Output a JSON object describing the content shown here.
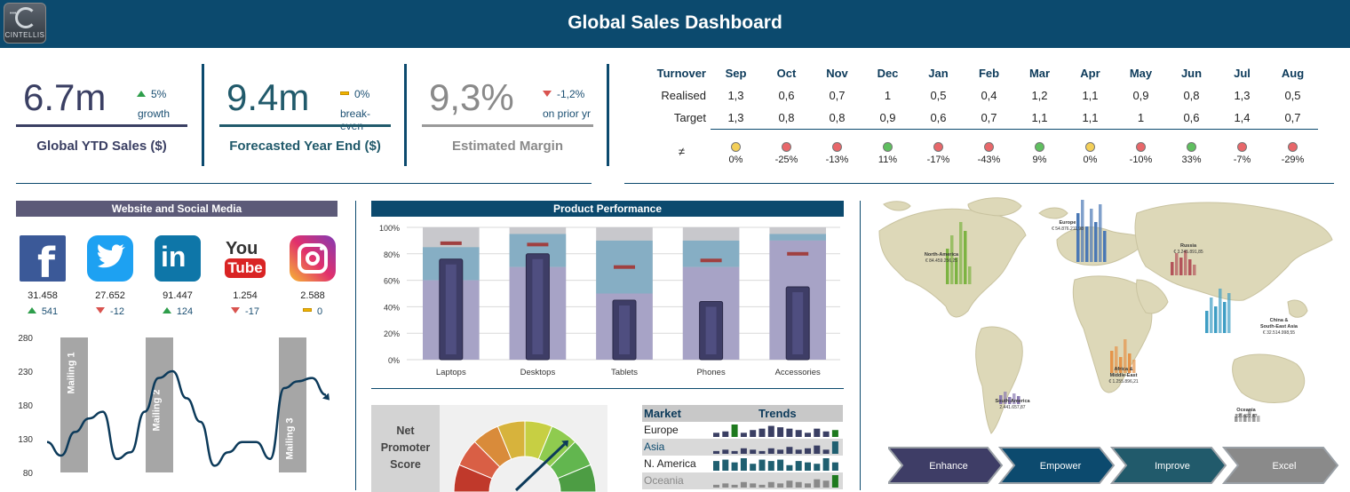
{
  "header": {
    "title": "Global Sales Dashboard",
    "logo_text": "CINTELLIS"
  },
  "kpis": [
    {
      "value": "6.7m",
      "change": "5%",
      "change_dir": "up",
      "change_sub": "growth",
      "label": "Global YTD Sales ($)",
      "color": "#3a3f63"
    },
    {
      "value": "9.4m",
      "change": "0%",
      "change_dir": "flat",
      "change_sub": "break-even",
      "label": "Forecasted Year End ($)",
      "color": "#215a6b"
    },
    {
      "value": "9,3%",
      "change": "-1,2%",
      "change_dir": "down",
      "change_sub": "on prior yr",
      "label": "Estimated Margin",
      "color": "#8a8a8a"
    }
  ],
  "turnover": {
    "header": "Turnover",
    "months": [
      "Sep",
      "Oct",
      "Nov",
      "Dec",
      "Jan",
      "Feb",
      "Mar",
      "Apr",
      "May",
      "Jun",
      "Jul",
      "Aug"
    ],
    "realised_label": "Realised",
    "realised": [
      "1,3",
      "0,6",
      "0,7",
      "1",
      "0,5",
      "0,4",
      "1,2",
      "1,1",
      "0,9",
      "0,8",
      "1,3",
      "0,5"
    ],
    "target_label": "Target",
    "target": [
      "1,3",
      "0,8",
      "0,8",
      "0,9",
      "0,6",
      "0,7",
      "1,1",
      "1,1",
      "1",
      "0,6",
      "1,4",
      "0,7"
    ],
    "diff_label": "≠",
    "status": [
      "y",
      "r",
      "r",
      "g",
      "r",
      "r",
      "g",
      "y",
      "r",
      "g",
      "r",
      "r"
    ],
    "diff": [
      "0%",
      "-25%",
      "-13%",
      "11%",
      "-17%",
      "-43%",
      "9%",
      "0%",
      "-10%",
      "33%",
      "-7%",
      "-29%"
    ]
  },
  "social_panel": {
    "title": "Website and Social Media",
    "networks": [
      {
        "name": "facebook-icon",
        "glyph": "f",
        "value": "31.458",
        "delta": "541",
        "dir": "up"
      },
      {
        "name": "twitter-icon",
        "glyph": "",
        "value": "27.652",
        "delta": "-12",
        "dir": "down"
      },
      {
        "name": "linkedin-icon",
        "glyph": "in",
        "value": "91.447",
        "delta": "124",
        "dir": "up"
      },
      {
        "name": "youtube-icon",
        "glyph": "You",
        "glyph2": "Tube",
        "value": "1.254",
        "delta": "-17",
        "dir": "down"
      },
      {
        "name": "instagram-icon",
        "glyph": "",
        "value": "2.588",
        "delta": "0",
        "dir": "flat"
      }
    ],
    "mailings": [
      "Mailing 1",
      "Mailing 2",
      "Mailing 3"
    ]
  },
  "product_panel": {
    "title": "Product Performance"
  },
  "nps": {
    "label_line1": "Net",
    "label_line2": "Promoter",
    "label_line3": "Score",
    "value": 0.72
  },
  "market": {
    "header_market": "Market",
    "header_trends": "Trends",
    "rows": [
      {
        "name": "Europe",
        "color": "#1e7a1e",
        "spark": [
          3,
          4,
          9,
          3,
          5,
          6,
          8,
          7,
          6,
          5,
          3,
          6,
          4,
          5
        ]
      },
      {
        "name": "Asia",
        "color": "#1f5f70",
        "spark": [
          2,
          3,
          2,
          4,
          3,
          2,
          4,
          3,
          5,
          3,
          4,
          6,
          3,
          9
        ]
      },
      {
        "name": "N. America",
        "color": "#1f5f70",
        "spark": [
          7,
          8,
          6,
          9,
          5,
          8,
          7,
          8,
          4,
          7,
          6,
          5,
          9,
          6
        ]
      },
      {
        "name": "Oceania",
        "color": "#1e7a1e",
        "spark": [
          2,
          3,
          2,
          4,
          3,
          2,
          4,
          3,
          5,
          4,
          3,
          6,
          5,
          9
        ]
      }
    ]
  },
  "map": {
    "regions": [
      {
        "name": "North-America",
        "value": "€ 84.459.256,25"
      },
      {
        "name": "Europe",
        "value": "€ 54.876.211,98"
      },
      {
        "name": "Russia",
        "value": "€ 3.245.891,85"
      },
      {
        "name": "China & South-East Asia",
        "value": "€ 32.514.998,55"
      },
      {
        "name": "Africa & Middle-East",
        "value": "€ 1.255.896,21"
      },
      {
        "name": "South-America",
        "value": "2.441.657,87"
      },
      {
        "name": "Oceania",
        "value": "895.622,47"
      }
    ],
    "steps": [
      "Enhance",
      "Empower",
      "Improve",
      "Excel"
    ]
  },
  "chart_data": [
    {
      "type": "line",
      "title": "",
      "y_ticks": [
        280,
        230,
        180,
        130,
        80
      ],
      "ylim": [
        80,
        280
      ],
      "values": [
        125,
        105,
        140,
        160,
        170,
        100,
        110,
        170,
        220,
        230,
        190,
        155,
        90,
        110,
        125,
        125,
        100,
        205,
        215,
        220,
        195
      ],
      "annotations": [
        "Mailing 1",
        "Mailing 2",
        "Mailing 3"
      ]
    },
    {
      "type": "bar",
      "title": "Product Performance",
      "categories": [
        "Laptops",
        "Desktops",
        "Tablets",
        "Phones",
        "Accessories"
      ],
      "y_ticks": [
        "100%",
        "80%",
        "60%",
        "40%",
        "20%",
        "0%"
      ],
      "ylim": [
        0,
        100
      ],
      "series": [
        {
          "name": "actual",
          "values": [
            76,
            80,
            45,
            44,
            55
          ]
        },
        {
          "name": "target",
          "values": [
            88,
            87,
            70,
            75,
            80
          ]
        },
        {
          "name": "band_poor",
          "values": [
            60,
            70,
            50,
            70,
            90
          ]
        },
        {
          "name": "band_ok",
          "values": [
            85,
            95,
            90,
            90,
            95
          ]
        }
      ]
    }
  ]
}
